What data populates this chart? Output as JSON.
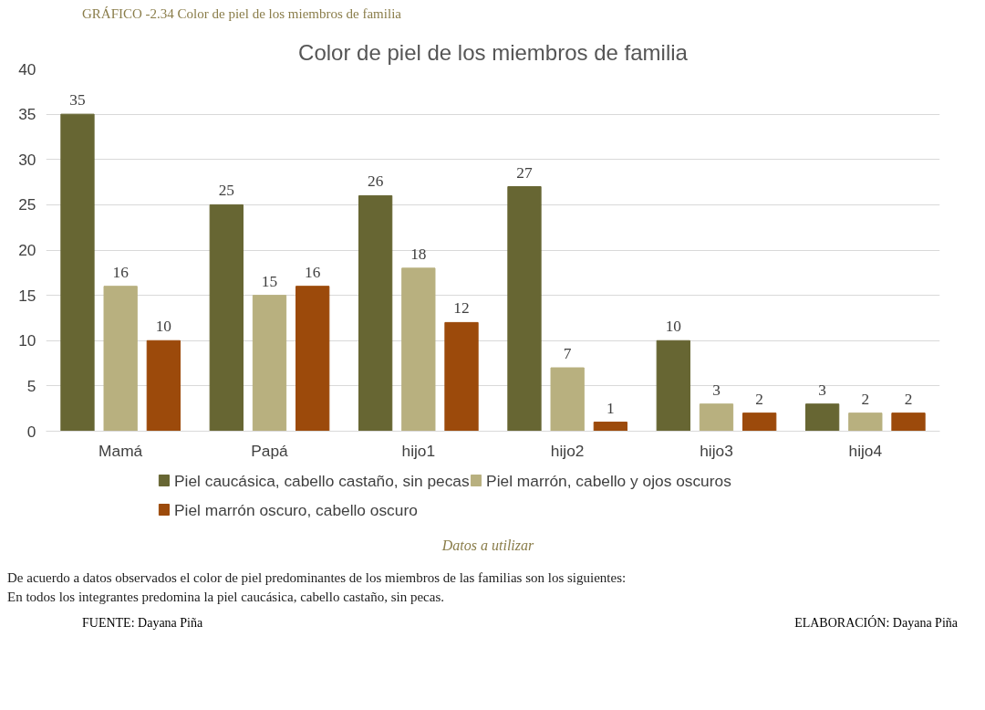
{
  "chart_data": {
    "type": "bar",
    "title": "Color de piel de los miembros de familia",
    "categories": [
      "Mamá",
      "Papá",
      "hijo1",
      "hijo2",
      "hijo3",
      "hijo4"
    ],
    "series": [
      {
        "name": "Piel  caucásica, cabello castaño, sin pecas",
        "color": "#676633",
        "values": [
          35,
          25,
          26,
          27,
          10,
          3
        ]
      },
      {
        "name": "Piel marrón, cabello y ojos oscuros",
        "color": "#b8b07f",
        "values": [
          16,
          15,
          18,
          7,
          3,
          2
        ]
      },
      {
        "name": "Piel marrón oscuro,  cabello oscuro",
        "color": "#9c4a0b",
        "values": [
          10,
          16,
          12,
          1,
          2,
          2
        ]
      }
    ],
    "ylim": [
      0,
      40
    ],
    "yticks": [
      0,
      5,
      10,
      15,
      20,
      25,
      30,
      35,
      40
    ],
    "grid": "y",
    "legend": "bottom",
    "data_labels": true,
    "annotations": [
      "GRÁFICO -2.34 Color de piel de los miembros de familia",
      "Datos a utilizar",
      "De acuerdo a datos observados el color de piel predominantes de los miembros de las familias son los siguientes:",
      "En todos los integrantes predomina la piel caucásica, cabello castaño, sin pecas.",
      "FUENTE: Dayana Piña",
      "ELABORACIÓN: Dayana Piña"
    ]
  }
}
